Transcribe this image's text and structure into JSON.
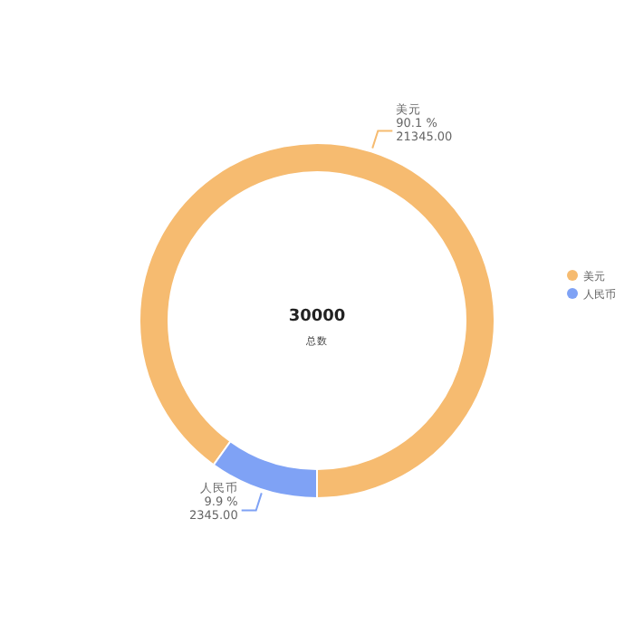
{
  "chart_data": {
    "type": "donut",
    "title": "30000",
    "subtitle": "总数",
    "categories": [
      "美元",
      "人民币"
    ],
    "values": [
      21345,
      2345
    ],
    "colors": [
      "#f6bb70",
      "#7fa2f5"
    ],
    "value_labels": [
      "90.1 %\n21345.00",
      "9.9 %\n2345.00"
    ],
    "legend": "right"
  }
}
